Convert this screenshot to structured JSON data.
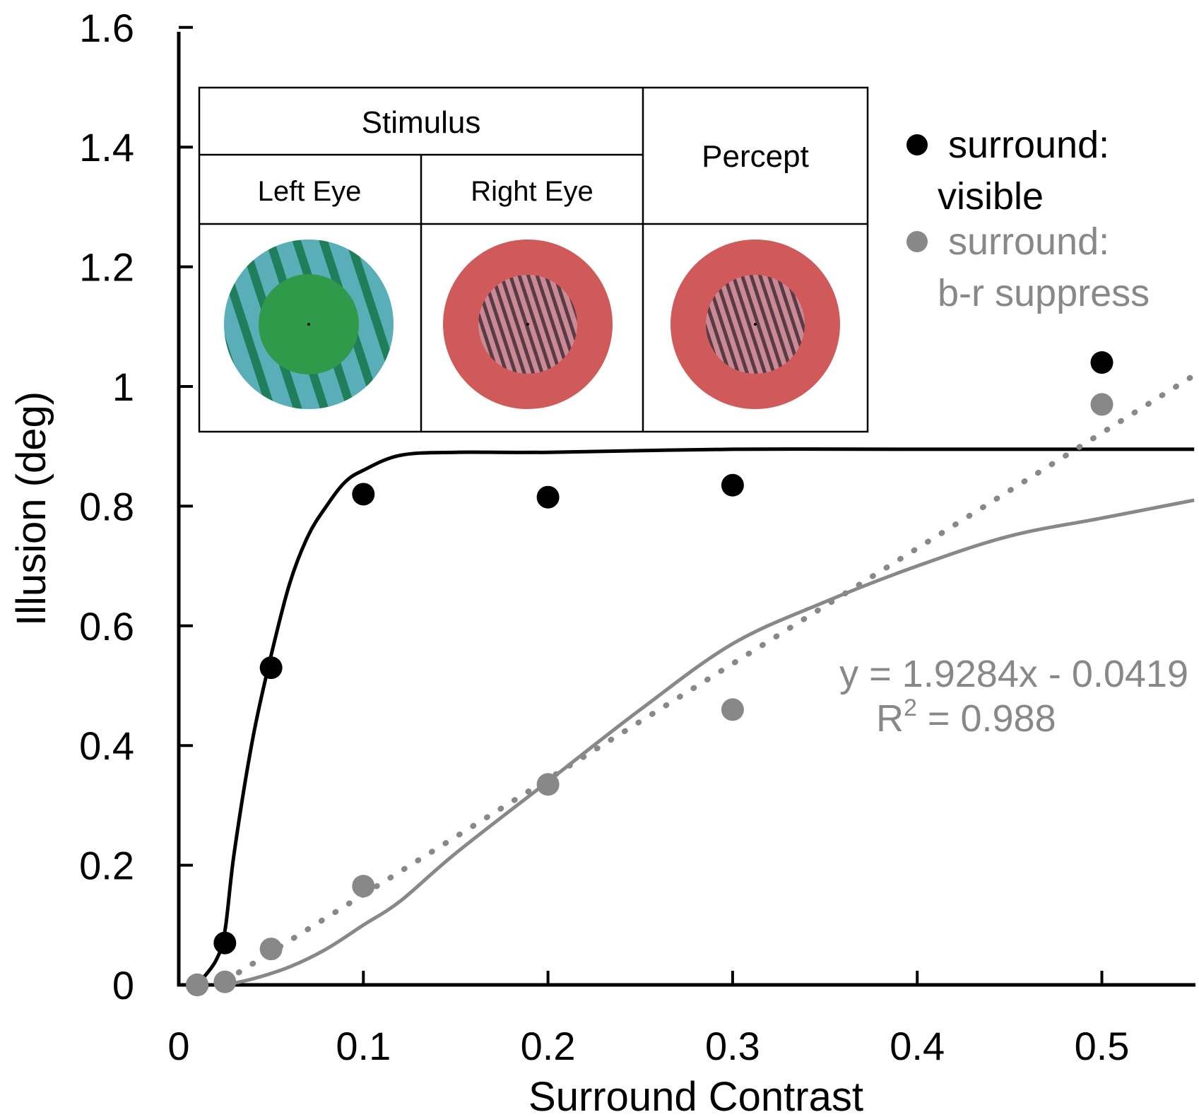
{
  "chart_data": {
    "type": "scatter",
    "xlabel": "Surround Contrast",
    "ylabel": "Illusion (deg)",
    "xlim": [
      0,
      0.55
    ],
    "ylim": [
      0,
      1.6
    ],
    "x_ticks": [
      0,
      0.1,
      0.2,
      0.3,
      0.4,
      0.5
    ],
    "x_tick_labels": [
      "0",
      "0.1",
      "0.2",
      "0.3",
      "0.4",
      "0.5"
    ],
    "y_ticks": [
      0,
      0.2,
      0.4,
      0.6,
      0.8,
      1.0,
      1.2,
      1.4,
      1.6
    ],
    "y_tick_labels": [
      "0",
      "0.2",
      "0.4",
      "0.6",
      "0.8",
      "1",
      "1.2",
      "1.4",
      "1.6"
    ],
    "grid": false,
    "series": [
      {
        "name": "surround: visible",
        "legend_line1": "surround:",
        "legend_line2": "visible",
        "color": "#000000",
        "points": [
          {
            "x": 0.01,
            "y": 0.0
          },
          {
            "x": 0.025,
            "y": 0.07
          },
          {
            "x": 0.05,
            "y": 0.53
          },
          {
            "x": 0.1,
            "y": 0.82
          },
          {
            "x": 0.2,
            "y": 0.815
          },
          {
            "x": 0.3,
            "y": 0.835
          },
          {
            "x": 0.5,
            "y": 1.04
          }
        ],
        "fit_curve": [
          [
            0.01,
            0.0
          ],
          [
            0.02,
            0.04
          ],
          [
            0.025,
            0.09
          ],
          [
            0.03,
            0.22
          ],
          [
            0.04,
            0.41
          ],
          [
            0.05,
            0.55
          ],
          [
            0.06,
            0.67
          ],
          [
            0.07,
            0.75
          ],
          [
            0.08,
            0.8
          ],
          [
            0.09,
            0.84
          ],
          [
            0.1,
            0.86
          ],
          [
            0.12,
            0.885
          ],
          [
            0.15,
            0.89
          ],
          [
            0.2,
            0.89
          ],
          [
            0.3,
            0.895
          ],
          [
            0.4,
            0.895
          ],
          [
            0.55,
            0.895
          ]
        ]
      },
      {
        "name": "surround: b-r suppress",
        "legend_line1": "surround:",
        "legend_line2": "b-r suppress",
        "color": "#888888",
        "points": [
          {
            "x": 0.01,
            "y": 0.0
          },
          {
            "x": 0.025,
            "y": 0.005
          },
          {
            "x": 0.05,
            "y": 0.06
          },
          {
            "x": 0.1,
            "y": 0.165
          },
          {
            "x": 0.2,
            "y": 0.335
          },
          {
            "x": 0.3,
            "y": 0.46
          },
          {
            "x": 0.5,
            "y": 0.97
          }
        ],
        "fit_curve": [
          [
            0.025,
            0.0
          ],
          [
            0.04,
            0.01
          ],
          [
            0.06,
            0.03
          ],
          [
            0.08,
            0.06
          ],
          [
            0.1,
            0.1
          ],
          [
            0.12,
            0.14
          ],
          [
            0.15,
            0.22
          ],
          [
            0.2,
            0.34
          ],
          [
            0.25,
            0.46
          ],
          [
            0.3,
            0.57
          ],
          [
            0.35,
            0.64
          ],
          [
            0.4,
            0.7
          ],
          [
            0.45,
            0.75
          ],
          [
            0.5,
            0.78
          ],
          [
            0.55,
            0.81
          ]
        ],
        "linear_fit": {
          "slope": 1.9284,
          "intercept": -0.0419,
          "x_range": [
            0.025,
            0.55
          ]
        }
      }
    ],
    "annotations": {
      "equation": "y = 1.9284x - 0.0419",
      "r2_prefix": "R",
      "r2_superscript": "2",
      "r2_suffix": " = 0.988"
    },
    "inset_table": {
      "stimulus_header": "Stimulus",
      "percept_header": "Percept",
      "left_eye_label": "Left Eye",
      "right_eye_label": "Right Eye"
    },
    "colors": {
      "axis": "#000000",
      "green_fill": "#2e9a4a",
      "teal_stripe": "#5aaeb8",
      "green_stripe": "#1f7f5a",
      "red_fill": "#d05a5a",
      "pink_stripe": "#c98a96",
      "dark_stripe": "#5a3a44"
    }
  }
}
